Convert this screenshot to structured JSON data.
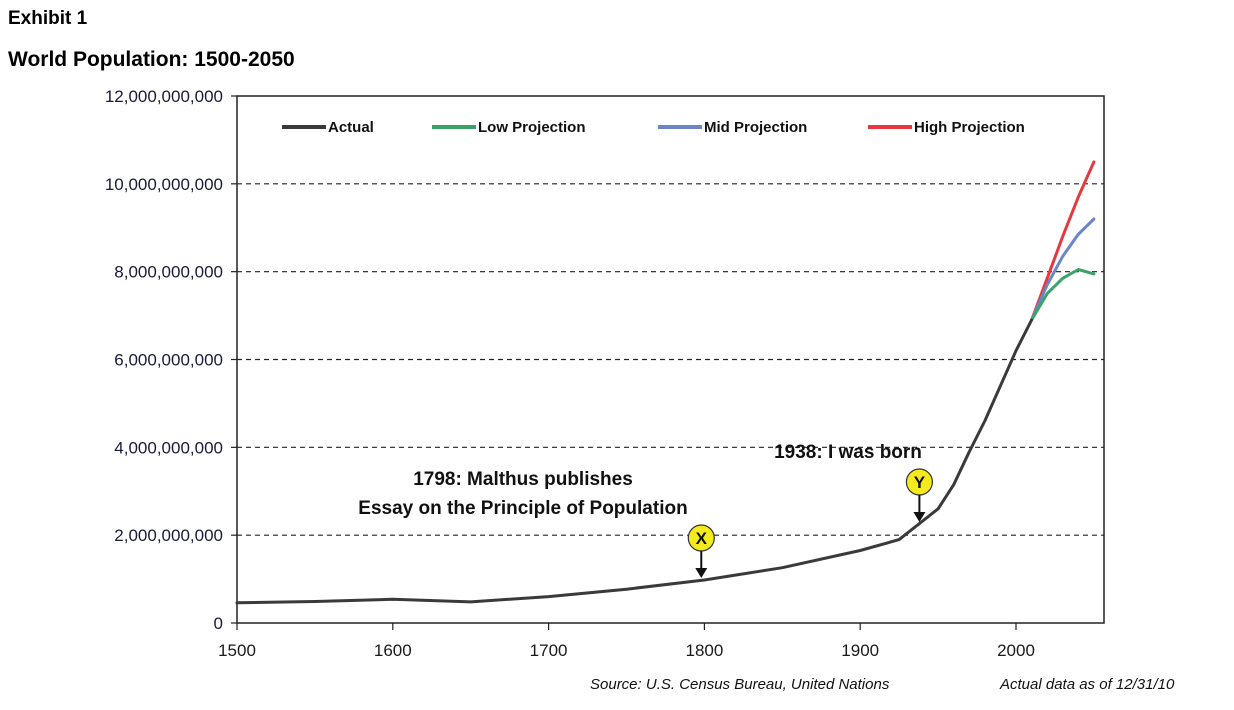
{
  "header": {
    "exhibit": "Exhibit 1",
    "title": "World Population: 1500-2050"
  },
  "footer": {
    "source": "Source: U.S. Census Bureau, United Nations",
    "as_of": "Actual data as of 12/31/10"
  },
  "chart_data": {
    "type": "line",
    "title": "World Population: 1500-2050",
    "xlabel": "",
    "ylabel": "",
    "xlim": [
      1500,
      2060
    ],
    "ylim": [
      0,
      12000000000
    ],
    "x_ticks": [
      "1500",
      "1600",
      "1700",
      "1800",
      "1900",
      "2000"
    ],
    "x_tick_values": [
      1500,
      1600,
      1700,
      1800,
      1900,
      2000
    ],
    "y_ticks": [
      "0",
      "2,000,000,000",
      "4,000,000,000",
      "6,000,000,000",
      "8,000,000,000",
      "10,000,000,000",
      "12,000,000,000"
    ],
    "y_tick_values": [
      0,
      2000000000,
      4000000000,
      6000000000,
      8000000000,
      10000000000,
      12000000000
    ],
    "grid": "horizontal-dashed",
    "legend_position": "top",
    "series": [
      {
        "name": "Actual",
        "color": "#3a3a3a",
        "x": [
          1500,
          1550,
          1600,
          1650,
          1700,
          1750,
          1800,
          1850,
          1900,
          1925,
          1950,
          1960,
          1970,
          1980,
          1990,
          2000,
          2010
        ],
        "values": [
          460000000,
          490000000,
          540000000,
          480000000,
          600000000,
          770000000,
          980000000,
          1260000000,
          1650000000,
          1900000000,
          2600000000,
          3150000000,
          3900000000,
          4600000000,
          5400000000,
          6200000000,
          6900000000
        ]
      },
      {
        "name": "Low Projection",
        "color": "#3aa36a",
        "x": [
          2010,
          2020,
          2030,
          2040,
          2050
        ],
        "values": [
          6900000000,
          7500000000,
          7850000000,
          8050000000,
          7950000000
        ]
      },
      {
        "name": "Mid Projection",
        "color": "#6a86c8",
        "x": [
          2010,
          2020,
          2030,
          2040,
          2050
        ],
        "values": [
          6900000000,
          7700000000,
          8350000000,
          8850000000,
          9200000000
        ]
      },
      {
        "name": "High Projection",
        "color": "#e8383f",
        "x": [
          2010,
          2020,
          2030,
          2040,
          2050
        ],
        "values": [
          6900000000,
          7850000000,
          8800000000,
          9700000000,
          10500000000
        ]
      }
    ],
    "annotations": [
      {
        "id": "X",
        "year": 1798,
        "lines": [
          "1798: Malthus publishes",
          "Essay on the Principle of Population"
        ]
      },
      {
        "id": "Y",
        "year": 1938,
        "lines": [
          "1938: I was born"
        ]
      }
    ],
    "marker_color": "#f5ea1c"
  }
}
